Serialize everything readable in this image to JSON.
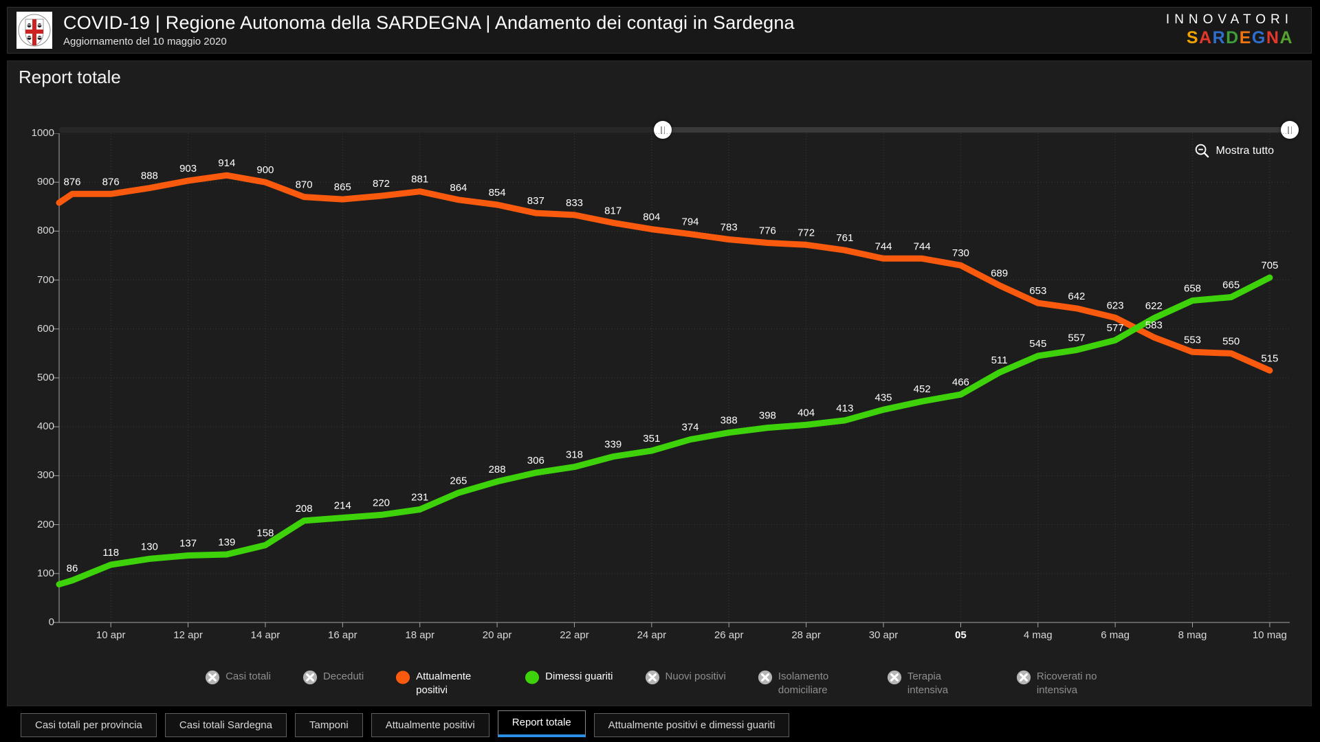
{
  "header": {
    "title": "COVID-19 | Regione Autonoma della SARDEGNA | Andamento dei contagi in Sardegna",
    "subtitle": "Aggiornamento del 10 maggio 2020",
    "brand_top": "INNOVATORI",
    "brand_letters": [
      {
        "ch": "S",
        "color": "#f0a202"
      },
      {
        "ch": "A",
        "color": "#e4372c"
      },
      {
        "ch": "R",
        "color": "#2e6fce"
      },
      {
        "ch": "D",
        "color": "#3f9e3a"
      },
      {
        "ch": "E",
        "color": "#ee7411"
      },
      {
        "ch": "G",
        "color": "#2e6fce"
      },
      {
        "ch": "N",
        "color": "#e4372c"
      },
      {
        "ch": "A",
        "color": "#57a32f"
      }
    ]
  },
  "section_title": "Report totale",
  "toolbar": {
    "zoom_out_label": "Mostra tutto"
  },
  "chart_data": {
    "type": "line",
    "title": "Report totale",
    "x": [
      "9 apr",
      "10 apr",
      "11 apr",
      "12 apr",
      "13 apr",
      "14 apr",
      "15 apr",
      "16 apr",
      "17 apr",
      "18 apr",
      "19 apr",
      "20 apr",
      "21 apr",
      "22 apr",
      "23 apr",
      "24 apr",
      "25 apr",
      "26 apr",
      "27 apr",
      "28 apr",
      "29 apr",
      "30 apr",
      "1 mag",
      "2 mag",
      "3 mag",
      "4 mag",
      "5 mag",
      "6 mag",
      "7 mag",
      "8 mag",
      "9 mag",
      "10 mag"
    ],
    "x_tick_labels": [
      {
        "index": 1,
        "label": "10 apr"
      },
      {
        "index": 3,
        "label": "12 apr"
      },
      {
        "index": 5,
        "label": "14 apr"
      },
      {
        "index": 7,
        "label": "16 apr"
      },
      {
        "index": 9,
        "label": "18 apr"
      },
      {
        "index": 11,
        "label": "20 apr"
      },
      {
        "index": 13,
        "label": "22 apr"
      },
      {
        "index": 15,
        "label": "24 apr"
      },
      {
        "index": 17,
        "label": "26 apr"
      },
      {
        "index": 19,
        "label": "28 apr"
      },
      {
        "index": 21,
        "label": "30 apr"
      },
      {
        "index": 23,
        "label": "05",
        "bold": true
      },
      {
        "index": 25,
        "label": "4 mag"
      },
      {
        "index": 27,
        "label": "6 mag"
      },
      {
        "index": 29,
        "label": "8 mag"
      },
      {
        "index": 31,
        "label": "10 mag"
      }
    ],
    "series": [
      {
        "name": "Attualmente positivi",
        "color": "#fa5a0d",
        "lead_in_estimate": 858,
        "values": [
          876,
          876,
          888,
          903,
          914,
          900,
          870,
          865,
          872,
          881,
          864,
          854,
          837,
          833,
          817,
          804,
          794,
          783,
          776,
          772,
          761,
          744,
          744,
          730,
          689,
          653,
          642,
          623,
          583,
          553,
          550,
          515
        ]
      },
      {
        "name": "Dimessi guariti",
        "color": "#3ed20a",
        "lead_in_estimate": 78,
        "values": [
          86,
          118,
          130,
          137,
          139,
          158,
          208,
          214,
          220,
          231,
          265,
          288,
          306,
          318,
          339,
          351,
          374,
          388,
          398,
          404,
          413,
          435,
          452,
          466,
          511,
          545,
          557,
          577,
          622,
          658,
          665,
          705
        ]
      }
    ],
    "ylim": [
      0,
      1000
    ],
    "y_ticks": [
      0,
      100,
      200,
      300,
      400,
      500,
      600,
      700,
      800,
      900,
      1000
    ],
    "grid": "dotted",
    "legend_position": "bottom"
  },
  "legend": {
    "items": [
      {
        "label": "Casi totali",
        "state": "disabled"
      },
      {
        "label": "Deceduti",
        "state": "disabled"
      },
      {
        "label": "Attualmente positivi",
        "state": "active",
        "color": "#fa5a0d"
      },
      {
        "label": "Dimessi guariti",
        "state": "active",
        "color": "#3ed20a"
      },
      {
        "label": "Nuovi positivi",
        "state": "disabled"
      },
      {
        "label": "Isolamento domiciliare",
        "state": "disabled"
      },
      {
        "label": "Terapia intensiva",
        "state": "disabled"
      },
      {
        "label": "Ricoverati no intensiva",
        "state": "disabled"
      }
    ],
    "disabled_icon_color": "#b5b5b5"
  },
  "tabs": {
    "active_color": "#2b8fe8",
    "items": [
      {
        "label": "Casi totali per provincia",
        "active": false
      },
      {
        "label": "Casi totali Sardegna",
        "active": false
      },
      {
        "label": "Tamponi",
        "active": false
      },
      {
        "label": "Attualmente positivi",
        "active": false
      },
      {
        "label": "Report totale",
        "active": true
      },
      {
        "label": "Attualmente positivi e dimessi guariti",
        "active": false
      }
    ]
  }
}
